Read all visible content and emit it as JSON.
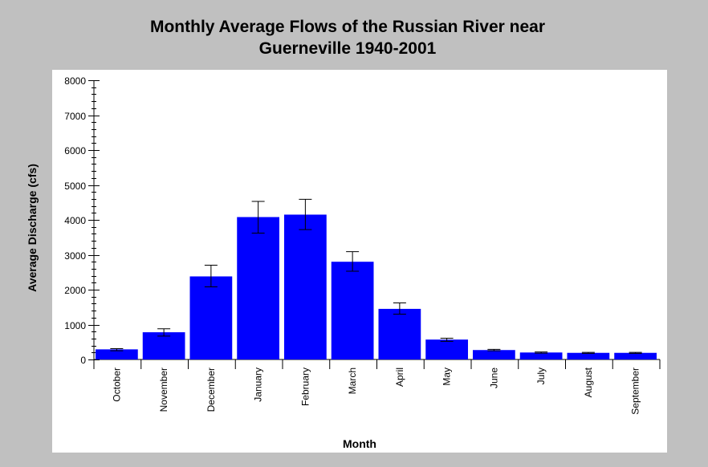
{
  "chart_data": {
    "type": "bar",
    "title_lines": [
      "Monthly Average Flows of the Russian River near",
      "Guerneville 1940-2001"
    ],
    "xlabel": "Month",
    "ylabel": "Average Discharge (cfs)",
    "ylim": [
      0,
      8000
    ],
    "yticks": [
      0,
      1000,
      2000,
      3000,
      4000,
      5000,
      6000,
      7000,
      8000
    ],
    "ytick_labels": [
      "0",
      "1000",
      "2000",
      "3000",
      "4000",
      "5000",
      "6000",
      "7000",
      "8000"
    ],
    "grid": false,
    "categories": [
      "October",
      "November",
      "December",
      "January",
      "February",
      "March",
      "April",
      "May",
      "June",
      "July",
      "August",
      "September"
    ],
    "values": [
      290,
      780,
      2380,
      4080,
      4150,
      2800,
      1450,
      570,
      270,
      200,
      190,
      190
    ],
    "error_low": [
      250,
      670,
      2080,
      3620,
      3720,
      2530,
      1300,
      520,
      250,
      180,
      175,
      175
    ],
    "error_high": [
      310,
      880,
      2700,
      4530,
      4590,
      3090,
      1620,
      610,
      290,
      215,
      205,
      205
    ],
    "bar_color": "#0000ff"
  }
}
